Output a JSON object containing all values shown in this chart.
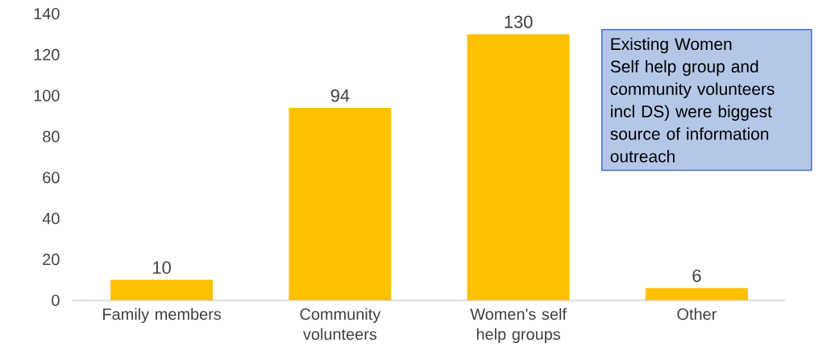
{
  "chart_data": {
    "type": "bar",
    "categories": [
      "Family members",
      "Community volunteers",
      "Women's self help groups",
      "Other"
    ],
    "values": [
      10,
      94,
      130,
      6
    ],
    "color": "#ffc000",
    "ylim": [
      0,
      140
    ],
    "yticks": [
      0,
      20,
      40,
      60,
      80,
      100,
      120,
      140
    ],
    "data_labels": true,
    "annotations": [
      "Existing Women Self help group and community volunteers incl DS) were biggest source of information outreach"
    ]
  }
}
